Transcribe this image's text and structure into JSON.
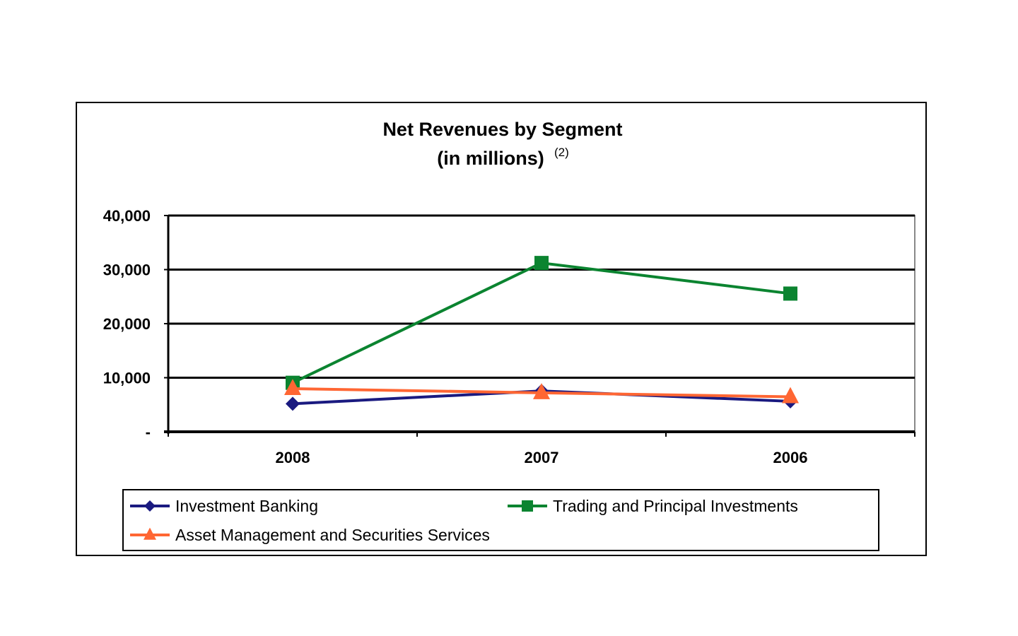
{
  "chart_data": {
    "type": "line",
    "title": "Net Revenues by Segment",
    "subtitle": "(in millions)",
    "subtitle_note": "(2)",
    "xlabel": "",
    "ylabel": "",
    "categories": [
      "2008",
      "2007",
      "2006"
    ],
    "ylim": [
      0,
      40000
    ],
    "yticks": [
      0,
      10000,
      20000,
      30000,
      40000
    ],
    "ytick_labels": [
      "-",
      "10,000",
      "20,000",
      "30,000",
      "40,000"
    ],
    "grid": true,
    "legend_position": "bottom",
    "series": [
      {
        "name": "Investment Banking",
        "values": [
          5185,
          7555,
          5629
        ],
        "color": "#1a1a80",
        "marker": "diamond"
      },
      {
        "name": "Trading and Principal Investments",
        "values": [
          9063,
          31226,
          25562
        ],
        "color": "#0b8430",
        "marker": "square"
      },
      {
        "name": "Asset Management and Securities Services",
        "values": [
          7974,
          7206,
          6474
        ],
        "color": "#ff6633",
        "marker": "triangle"
      }
    ]
  }
}
